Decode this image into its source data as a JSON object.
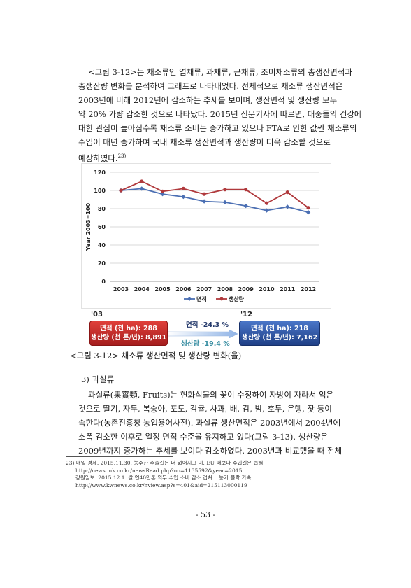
{
  "paragraph1": {
    "lines": [
      "<그림 3-12>는 채소류인 엽채류, 과채류, 근채류, 조미채소류의 총생산면적과",
      "총생산량 변화를 분석하여 그래프로 나타내었다. 전체적으로 채소류 생산면적은",
      "2003년에 비해 2012년에 감소하는 추세를 보이며, 생산면적 및 생산량 모두",
      "약 20% 가량 감소한 것으로 나타났다. 2015년 신문기사에 따르면, 대중들의 건강에",
      "대한 관심이 높아짐수록 채소류 소비는 증가하고 있으나 FTA로 인한 값싼 채소류의",
      "수입이 매년 증가하여 국내 채소류 생산면적과 생산량이 더욱 감소할 것으로",
      "예상하였다."
    ],
    "footnote_ref": "23)"
  },
  "chart_data": {
    "type": "line",
    "categories": [
      "2003",
      "2004",
      "2005",
      "2006",
      "2007",
      "2008",
      "2009",
      "2010",
      "2011",
      "2012"
    ],
    "series": [
      {
        "name": "면적",
        "color": "#4b6fb3",
        "marker": "diamond",
        "values": [
          100,
          102,
          96,
          93,
          88,
          87,
          83,
          78,
          82,
          76
        ]
      },
      {
        "name": "생산량",
        "color": "#b0393c",
        "marker": "circle",
        "values": [
          100,
          110,
          99,
          102,
          96,
          101,
          101,
          86,
          98,
          81
        ]
      }
    ],
    "ylabel": "Year 2003=100",
    "ylim": [
      0,
      120
    ],
    "yticks": [
      0,
      20,
      40,
      60,
      80,
      100,
      120
    ],
    "grid": true,
    "legend": "bottom"
  },
  "summary": {
    "year_start": "'03",
    "year_end": "'12",
    "start_area": "면적 (천 ha): 288",
    "start_prod": "생산량 (천 톤/년): 8,891",
    "end_area": "면적 (천 ha): 218",
    "end_prod": "생산량 (천 톤/년): 7,162",
    "area_change": "면적 -24.3 %",
    "prod_change": "생산량 -19.4 %"
  },
  "caption": "<그림 3-12> 채소류 생산면적 및 생산량 변화(율)",
  "section_heading": "3) 과실류",
  "paragraph2": {
    "lines": [
      "과실류(果實類, Fruits)는 현화식물의 꽃이 수정하여 자방이 자라서 익은",
      "것으로 딸기, 자두, 복숭아, 포도, 감귤, 사과, 배, 감, 밤, 호두, 은행, 잣 등이",
      "속한다(농촌진흥청 농업용어사전). 과실류 생산면적은 2003년에서 2004년에",
      "소폭 감소한 이후로 일정 면적 수준을 유지하고 있다(그림 3-13). 생산량은",
      "2009년까지 증가하는 추세를 보이다 감소하였다. 2003년과 비교했을 때 전체"
    ]
  },
  "footnotes": [
    "23) 매일 경제. 2015.11.30. 농수산 수출길은 더 넓어지고 미, EU 때보다 수입길은 좁혀",
    "http://news.mk.co.kr/newsRead.php?no=1135592&year=2015",
    "강원일보. 2015.12.1. 쌀 연40만톤 의무 수입 소비 감소 겹쳐... 농가 몰락 가속",
    "http://www.kwnews.co.kr/nview.asp?s=401&aid=215113000119"
  ],
  "page_number": "- 53 -"
}
